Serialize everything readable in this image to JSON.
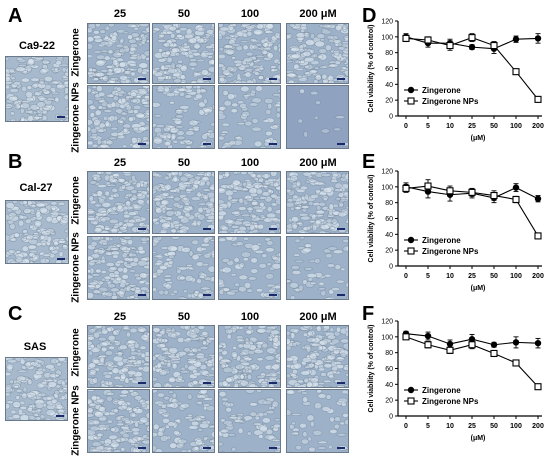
{
  "panels": [
    {
      "letter": "A",
      "cell_line": "Ca9-22"
    },
    {
      "letter": "B",
      "cell_line": "Cal-27"
    },
    {
      "letter": "C",
      "cell_line": "SAS"
    }
  ],
  "chart_panels": [
    {
      "letter": "D"
    },
    {
      "letter": "E"
    },
    {
      "letter": "F"
    }
  ],
  "micro_columns": [
    "25",
    "50",
    "100",
    "200 μM"
  ],
  "micro_rows": [
    "Zingerone",
    "Zingerone NPs"
  ],
  "colors": {
    "image_base": "#9db2c8",
    "cell": "#d9e4ee",
    "ink": "#000000"
  },
  "chart_data": [
    {
      "type": "line",
      "categories": [
        "0",
        "5",
        "10",
        "25",
        "50",
        "100",
        "200"
      ],
      "xlabel": "(μM)",
      "ylabel": "Cell viability (% of control)",
      "ylim": [
        0,
        120
      ],
      "yticks": [
        0,
        20,
        40,
        60,
        80,
        100,
        120
      ],
      "legend": "bottom-left",
      "series": [
        {
          "name": "Zingerone",
          "marker": "filled-circle",
          "values": [
            100,
            92,
            92,
            87,
            85,
            97,
            98
          ],
          "errors": [
            4,
            5,
            5,
            3,
            6,
            4,
            6
          ]
        },
        {
          "name": "Zingerone NPs",
          "marker": "open-square",
          "values": [
            98,
            96,
            89,
            99,
            89,
            56,
            21
          ],
          "errors": [
            4,
            4,
            6,
            5,
            5,
            3,
            3
          ]
        }
      ]
    },
    {
      "type": "line",
      "categories": [
        "0",
        "5",
        "10",
        "25",
        "50",
        "100",
        "200"
      ],
      "xlabel": "(μM)",
      "ylabel": "Cell viability (% of control)",
      "ylim": [
        0,
        120
      ],
      "yticks": [
        0,
        20,
        40,
        60,
        80,
        100,
        120
      ],
      "legend": "bottom-left",
      "series": [
        {
          "name": "Zingerone",
          "marker": "filled-circle",
          "values": [
            100,
            94,
            90,
            92,
            86,
            99,
            85
          ],
          "errors": [
            5,
            8,
            8,
            6,
            6,
            5,
            4
          ]
        },
        {
          "name": "Zingerone NPs",
          "marker": "open-square",
          "values": [
            98,
            101,
            95,
            93,
            89,
            84,
            38
          ],
          "errors": [
            5,
            8,
            6,
            5,
            6,
            4,
            3
          ]
        }
      ]
    },
    {
      "type": "line",
      "categories": [
        "0",
        "5",
        "10",
        "25",
        "50",
        "100",
        "200"
      ],
      "xlabel": "(μM)",
      "ylabel": "Cell viability (% of control)",
      "ylim": [
        0,
        120
      ],
      "yticks": [
        0,
        20,
        40,
        60,
        80,
        100,
        120
      ],
      "legend": "bottom-left",
      "series": [
        {
          "name": "Zingerone",
          "marker": "filled-circle",
          "values": [
            104,
            101,
            91,
            97,
            90,
            93,
            92
          ],
          "errors": [
            3,
            5,
            5,
            6,
            3,
            7,
            6
          ]
        },
        {
          "name": "Zingerone NPs",
          "marker": "open-square",
          "values": [
            100,
            90,
            83,
            90,
            79,
            67,
            37
          ],
          "errors": [
            3,
            4,
            4,
            5,
            3,
            3,
            3
          ]
        }
      ]
    }
  ]
}
